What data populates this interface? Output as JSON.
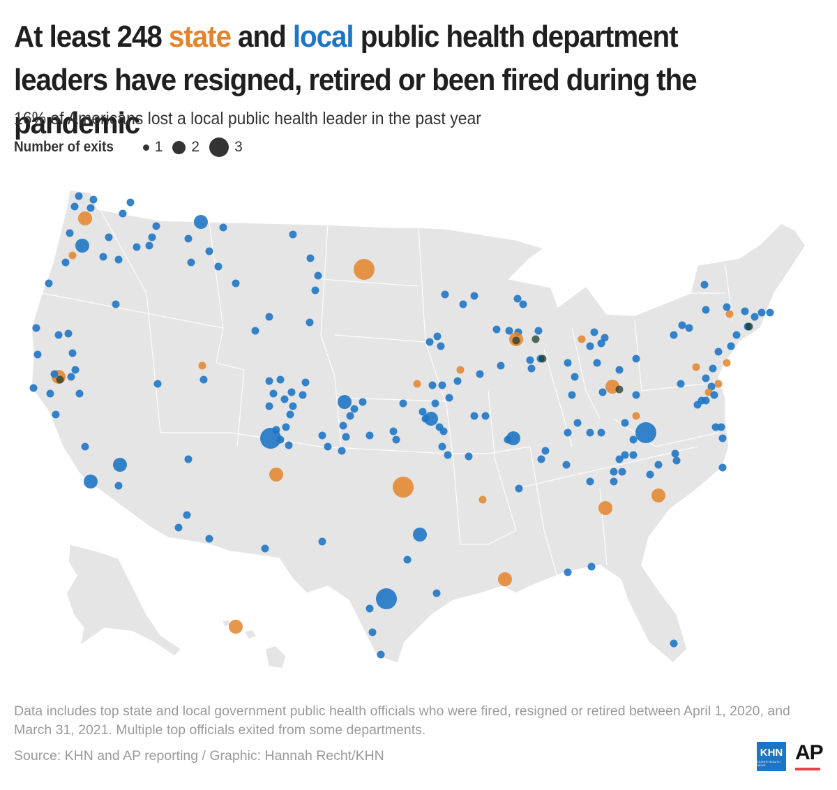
{
  "headline": {
    "part1": "At least 248 ",
    "state_word": "state",
    "part2": " and ",
    "local_word": "local",
    "part3": " public health department leaders have resigned, retired or been fired during the pandemic"
  },
  "subtitle": "16% of Americans lost a local public health leader in the past year",
  "legend": {
    "title": "Number of exits",
    "items": [
      {
        "label": "1",
        "value": 1
      },
      {
        "label": "2",
        "value": 2
      },
      {
        "label": "3",
        "value": 3
      }
    ]
  },
  "colors": {
    "state": "#e4842a",
    "local": "#1f75c5",
    "land": "#e5e5e5",
    "border": "#ffffff",
    "overlap": "#1d3b2c"
  },
  "footnote": "Data includes top state and local government public health officials who were fired, resigned or retired between April 1, 2020, and March 31, 2021. Multiple top officials exited from some departments.",
  "source": "Source: KHN and AP reporting / Graphic: Hannah Recht/KHN",
  "logos": {
    "khn": "KHN",
    "khn_sub": "KAISER HEALTH NEWS",
    "ap": "AP"
  },
  "map": {
    "type": "proportional-symbol",
    "region": "United States",
    "symbol_categories": [
      "state",
      "local"
    ]
  }
}
